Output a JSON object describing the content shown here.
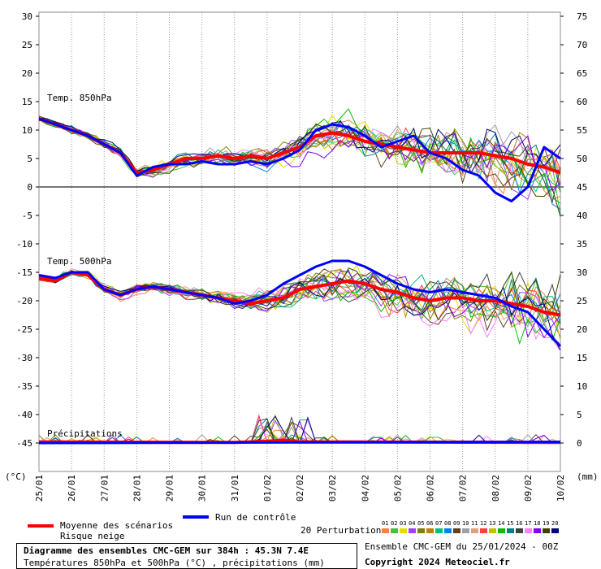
{
  "chart_data": {
    "type": "line",
    "left_axis": {
      "unit": "(°C)",
      "ticks": [
        30,
        25,
        20,
        15,
        10,
        5,
        0,
        -5,
        -10,
        -15,
        -20,
        -25,
        -30,
        -35,
        -40,
        -45
      ],
      "range": [
        -45,
        30
      ]
    },
    "right_axis": {
      "unit": "(mm)",
      "ticks": [
        75,
        70,
        65,
        60,
        55,
        50,
        45,
        40,
        35,
        30,
        25,
        20,
        15,
        10,
        5,
        0
      ],
      "range": [
        0,
        75
      ]
    },
    "x_labels": [
      "25/01",
      "26/01",
      "27/01",
      "28/01",
      "29/01",
      "30/01",
      "31/01",
      "01/02",
      "02/02",
      "03/02",
      "04/02",
      "05/02",
      "06/02",
      "07/02",
      "08/02",
      "09/02",
      "10/02"
    ],
    "x_range_days": [
      0,
      16
    ],
    "section_labels": {
      "t850": "Temp. 850hPa",
      "t500": "Temp. 500hPa",
      "precip": "Précipitations"
    },
    "series": [
      {
        "name": "Moyenne des scénarios",
        "color": "#ff0000",
        "t850": [
          [
            0,
            12
          ],
          [
            0.5,
            11
          ],
          [
            1,
            10
          ],
          [
            1.5,
            9
          ],
          [
            2,
            7.5
          ],
          [
            2.5,
            6
          ],
          [
            3,
            2.5
          ],
          [
            3.5,
            3
          ],
          [
            4,
            4
          ],
          [
            4.5,
            5
          ],
          [
            5,
            5
          ],
          [
            5.5,
            5.5
          ],
          [
            6,
            5
          ],
          [
            6.5,
            5.5
          ],
          [
            7,
            5
          ],
          [
            7.5,
            6
          ],
          [
            8,
            7
          ],
          [
            8.5,
            9
          ],
          [
            9,
            9.5
          ],
          [
            9.5,
            9
          ],
          [
            10,
            8
          ],
          [
            10.5,
            7.5
          ],
          [
            11,
            7
          ],
          [
            11.5,
            6.5
          ],
          [
            12,
            6
          ],
          [
            12.5,
            6
          ],
          [
            13,
            6
          ],
          [
            13.5,
            6
          ],
          [
            14,
            5.5
          ],
          [
            14.5,
            5
          ],
          [
            15,
            4
          ],
          [
            15.5,
            3.5
          ],
          [
            16,
            2.5
          ]
        ],
        "t500": [
          [
            0,
            -16
          ],
          [
            0.5,
            -16.5
          ],
          [
            1,
            -15
          ],
          [
            1.5,
            -15.5
          ],
          [
            2,
            -18
          ],
          [
            2.5,
            -19
          ],
          [
            3,
            -18
          ],
          [
            3.5,
            -17.5
          ],
          [
            4,
            -18
          ],
          [
            4.5,
            -18.5
          ],
          [
            5,
            -19
          ],
          [
            5.5,
            -19.5
          ],
          [
            6,
            -20
          ],
          [
            6.5,
            -20.5
          ],
          [
            7,
            -20
          ],
          [
            7.5,
            -19.5
          ],
          [
            8,
            -18
          ],
          [
            8.5,
            -17.5
          ],
          [
            9,
            -17
          ],
          [
            9.5,
            -16.5
          ],
          [
            10,
            -17
          ],
          [
            10.5,
            -18
          ],
          [
            11,
            -18.5
          ],
          [
            11.5,
            -19.5
          ],
          [
            12,
            -20
          ],
          [
            12.5,
            -19.5
          ],
          [
            13,
            -19.5
          ],
          [
            13.5,
            -20
          ],
          [
            14,
            -20
          ],
          [
            14.5,
            -20.5
          ],
          [
            15,
            -21
          ],
          [
            15.5,
            -22
          ],
          [
            16,
            -22.5
          ]
        ],
        "precip": [
          [
            0,
            0.2
          ],
          [
            6,
            0.1
          ],
          [
            7,
            0.3
          ],
          [
            7.5,
            0.5
          ],
          [
            8,
            0.2
          ],
          [
            16,
            0.1
          ]
        ]
      },
      {
        "name": "Run de contrôle",
        "color": "#0000ff",
        "t850": [
          [
            0,
            12
          ],
          [
            0.5,
            11
          ],
          [
            1,
            10
          ],
          [
            1.5,
            9
          ],
          [
            2,
            7.5
          ],
          [
            2.5,
            6
          ],
          [
            3,
            2
          ],
          [
            3.5,
            3.5
          ],
          [
            4,
            4
          ],
          [
            4.5,
            4
          ],
          [
            5,
            4.5
          ],
          [
            5.5,
            4
          ],
          [
            6,
            4
          ],
          [
            6.5,
            4.5
          ],
          [
            7,
            4
          ],
          [
            7.5,
            5
          ],
          [
            8,
            6.5
          ],
          [
            8.5,
            10
          ],
          [
            9,
            11
          ],
          [
            9.5,
            10.5
          ],
          [
            10,
            9
          ],
          [
            10.5,
            7
          ],
          [
            11,
            8
          ],
          [
            11.5,
            9
          ],
          [
            12,
            6
          ],
          [
            12.5,
            5
          ],
          [
            13,
            3
          ],
          [
            13.5,
            2
          ],
          [
            14,
            -1
          ],
          [
            14.5,
            -2.5
          ],
          [
            15,
            0
          ],
          [
            15.5,
            7
          ],
          [
            16,
            5
          ]
        ],
        "t500": [
          [
            0,
            -15.5
          ],
          [
            0.5,
            -16
          ],
          [
            1,
            -15
          ],
          [
            1.5,
            -15
          ],
          [
            2,
            -18
          ],
          [
            2.5,
            -19
          ],
          [
            3,
            -18
          ],
          [
            3.5,
            -17.5
          ],
          [
            4,
            -18
          ],
          [
            4.5,
            -18.5
          ],
          [
            5,
            -19
          ],
          [
            5.5,
            -19.5
          ],
          [
            6,
            -20.5
          ],
          [
            6.5,
            -20
          ],
          [
            7,
            -19
          ],
          [
            7.5,
            -17
          ],
          [
            8,
            -15.5
          ],
          [
            8.5,
            -14
          ],
          [
            9,
            -13
          ],
          [
            9.5,
            -13
          ],
          [
            10,
            -14
          ],
          [
            10.5,
            -15.5
          ],
          [
            11,
            -17
          ],
          [
            11.5,
            -18
          ],
          [
            12,
            -18.5
          ],
          [
            12.5,
            -18
          ],
          [
            13,
            -18.5
          ],
          [
            13.5,
            -19
          ],
          [
            14,
            -19.5
          ],
          [
            14.5,
            -21
          ],
          [
            15,
            -22
          ],
          [
            15.5,
            -25
          ],
          [
            16,
            -28
          ]
        ],
        "precip": [
          [
            0,
            0
          ],
          [
            16,
            0.2
          ]
        ]
      }
    ],
    "perturbations_label": "20 Perturbations",
    "perturbation_colors": [
      "#ff8040",
      "#40c040",
      "#e0e000",
      "#a040ff",
      "#808000",
      "#c08000",
      "#00c080",
      "#0080ff",
      "#604020",
      "#a0a0a0",
      "#e0a080",
      "#ff4040",
      "#c0c000",
      "#00c000",
      "#008080",
      "#404040",
      "#ff80ff",
      "#8000ff",
      "#404000",
      "#000080"
    ],
    "perturbation_numbers": [
      "01",
      "02",
      "03",
      "04",
      "05",
      "06",
      "07",
      "08",
      "09",
      "10",
      "11",
      "12",
      "13",
      "14",
      "15",
      "16",
      "17",
      "18",
      "19",
      "20"
    ]
  },
  "legend": {
    "mean_label": "Moyenne des scénarios",
    "snow_label": "Risque neige",
    "control_label": "Run de contrôle",
    "mean_color": "#ff0000",
    "control_color": "#0000ff"
  },
  "title": {
    "line1": "Diagramme des ensembles CMC-GEM sur 384h : 45.3N 7.4E",
    "line2": "Températures 850hPa et 500hPa (°C) , précipitations (mm)"
  },
  "credits": {
    "run": "Ensemble CMC-GEM du 25/01/2024 - 00Z",
    "copyright": "Copyright 2024 Meteociel.fr"
  }
}
